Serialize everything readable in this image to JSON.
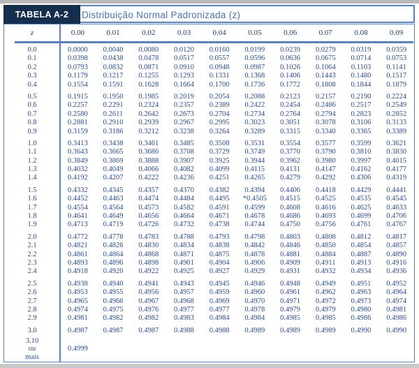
{
  "header": {
    "tab_label": "TABELA A-2",
    "title": "Distribuição Normal Padronizada (z)"
  },
  "colors": {
    "accent_blue": "#5c80b8",
    "navy_block": "#152e4e",
    "title_blue": "#4a74ad",
    "data_text_blue": "#2c4c8c",
    "header_text_blue": "#1f3d73",
    "page_edge_gray": "#b9b9b9"
  },
  "table": {
    "z_header": "z",
    "columns": [
      "0.00",
      "0.01",
      "0.02",
      "0.03",
      "0.04",
      "0.05",
      "0.06",
      "0.07",
      "0.08",
      "0.09"
    ],
    "groups": [
      {
        "rows": [
          {
            "z": "0.0",
            "values": [
              "0.0000",
              "0.0040",
              "0.0080",
              "0.0120",
              "0.0160",
              "0.0199",
              "0.0239",
              "0.0279",
              "0.0319",
              "0.0359"
            ]
          },
          {
            "z": "0.1",
            "values": [
              "0.0398",
              "0.0438",
              "0.0478",
              "0.0517",
              "0.0557",
              "0.0596",
              "0.0636",
              "0.0675",
              "0.0714",
              "0.0753"
            ]
          },
          {
            "z": "0.2",
            "values": [
              "0.0793",
              "0.0832",
              "0.0871",
              "0.0910",
              "0.0948",
              "0.0987",
              "0.1026",
              "0.1064",
              "0.1103",
              "0.1141"
            ]
          },
          {
            "z": "0.3",
            "values": [
              "0.1179",
              "0.1217",
              "0.1255",
              "0.1293",
              "0.1331",
              "0.1368",
              "0.1406",
              "0.1443",
              "0.1480",
              "0.1517"
            ]
          },
          {
            "z": "0.4",
            "values": [
              "0.1554",
              "0.1591",
              "0.1628",
              "0.1664",
              "0.1700",
              "0.1736",
              "0.1772",
              "0.1808",
              "0.1844",
              "0.1879"
            ]
          }
        ]
      },
      {
        "rows": [
          {
            "z": "0.5",
            "values": [
              "0.1915",
              "0.1950",
              "0.1985",
              "0.2019",
              "0.2054",
              "0.2088",
              "0.2123",
              "0.2157",
              "0.2190",
              "0.2224"
            ]
          },
          {
            "z": "0.6",
            "values": [
              "0.2257",
              "0.2291",
              "0.2324",
              "0.2357",
              "0.2389",
              "0.2422",
              "0.2454",
              "0.2486",
              "0.2517",
              "0.2549"
            ]
          },
          {
            "z": "0.7",
            "values": [
              "0.2580",
              "0.2611",
              "0.2642",
              "0.2673",
              "0.2704",
              "0.2734",
              "0.2764",
              "0.2794",
              "0.2823",
              "0.2852"
            ]
          },
          {
            "z": "0.8",
            "values": [
              "0.2881",
              "0.2910",
              "0.2939",
              "0.2967",
              "0.2995",
              "0.3023",
              "0.3051",
              "0.3078",
              "0.3106",
              "0.3133"
            ]
          },
          {
            "z": "0.9",
            "values": [
              "0.3159",
              "0.3186",
              "0.3212",
              "0.3238",
              "0.3264",
              "0.3289",
              "0.3315",
              "0.3340",
              "0.3365",
              "0.3389"
            ]
          }
        ]
      },
      {
        "rows": [
          {
            "z": "1.0",
            "values": [
              "0.3413",
              "0.3438",
              "0.3461",
              "0.3485",
              "0.3508",
              "0.3531",
              "0.3554",
              "0.3577",
              "0.3599",
              "0.3621"
            ]
          },
          {
            "z": "1.1",
            "values": [
              "0.3643",
              "0.3665",
              "0.3686",
              "0.3708",
              "0.3729",
              "0.3749",
              "0.3770",
              "0.3790",
              "0.3810",
              "0.3830"
            ]
          },
          {
            "z": "1.2",
            "values": [
              "0.3849",
              "0.3869",
              "0.3888",
              "0.3907",
              "0.3925",
              "0.3944",
              "0.3962",
              "0.3980",
              "0.3997",
              "0.4015"
            ]
          },
          {
            "z": "1.3",
            "values": [
              "0.4032",
              "0.4049",
              "0.4066",
              "0.4082",
              "0.4099",
              "0.4115",
              "0.4131",
              "0.4147",
              "0.4162",
              "0.4177"
            ]
          },
          {
            "z": "1.4",
            "values": [
              "0.4192",
              "0.4207",
              "0.4222",
              "0.4236",
              "0.4251",
              "0.4265",
              "0.4279",
              "0.4292",
              "0.4306",
              "0.4319"
            ]
          }
        ]
      },
      {
        "rows": [
          {
            "z": "1.5",
            "values": [
              "0.4332",
              "0.4345",
              "0.4357",
              "0.4370",
              "0.4382",
              "0.4394",
              "0.4406",
              "0.4418",
              "0.4429",
              "0.4441"
            ]
          },
          {
            "z": "1.6",
            "values": [
              "0.4452",
              "0.4463",
              "0.4474",
              "0.4484",
              "0.4495",
              "*0.4505",
              "0.4515",
              "0.4525",
              "0.4535",
              "0.4545"
            ]
          },
          {
            "z": "1.7",
            "values": [
              "0.4554",
              "0.4564",
              "0.4573",
              "0.4582",
              "0.4591",
              "0.4599",
              "0.4608",
              "0.4616",
              "0.4625",
              "0.4633"
            ]
          },
          {
            "z": "1.8",
            "values": [
              "0.4641",
              "0.4649",
              "0.4656",
              "0.4664",
              "0.4671",
              "0.4678",
              "0.4686",
              "0.4693",
              "0.4699",
              "0.4706"
            ]
          },
          {
            "z": "1.9",
            "values": [
              "0.4713",
              "0.4719",
              "0.4726",
              "0.4732",
              "0.4738",
              "0.4744",
              "0.4750",
              "0.4756",
              "0.4761",
              "0.4767"
            ]
          }
        ]
      },
      {
        "rows": [
          {
            "z": "2.0",
            "values": [
              "0.4772",
              "0.4778",
              "0.4783",
              "0.4788",
              "0.4793",
              "0.4798",
              "0.4803",
              "0.4808",
              "0.4812",
              "0.4817"
            ]
          },
          {
            "z": "2.1",
            "values": [
              "0.4821",
              "0.4826",
              "0.4830",
              "0.4834",
              "0.4838",
              "0.4842",
              "0.4846",
              "0.4850",
              "0.4854",
              "0.4857"
            ]
          },
          {
            "z": "2.2",
            "values": [
              "0.4861",
              "0.4864",
              "0.4868",
              "0.4871",
              "0.4875",
              "0.4878",
              "0.4881",
              "0.4884",
              "0.4887",
              "0.4890"
            ]
          },
          {
            "z": "2.3",
            "values": [
              "0.4893",
              "0.4896",
              "0.4898",
              "0.4901",
              "0.4904",
              "0.4906",
              "0.4909",
              "0.4911",
              "0.4913",
              "0.4916"
            ]
          },
          {
            "z": "2.4",
            "values": [
              "0.4918",
              "0.4920",
              "0.4922",
              "0.4925",
              "0.4927",
              "0.4929",
              "0.4931",
              "0.4932",
              "0.4934",
              "0.4936"
            ]
          }
        ]
      },
      {
        "rows": [
          {
            "z": "2.5",
            "values": [
              "0.4938",
              "0.4940",
              "0.4941",
              "0.4943",
              "0.4945",
              "0.4946",
              "0.4948",
              "0.4949",
              "0.4951",
              "0.4952"
            ]
          },
          {
            "z": "2.6",
            "values": [
              "0.4953",
              "0.4955",
              "0.4956",
              "0.4957",
              "0.4959",
              "0.4960",
              "0.4961",
              "0.4962",
              "0.4963",
              "0.4964"
            ]
          },
          {
            "z": "2.7",
            "values": [
              "0.4965",
              "0.4966",
              "0.4967",
              "0.4968",
              "0.4969",
              "0.4970",
              "0.4971",
              "0.4972",
              "0.4973",
              "0.4974"
            ]
          },
          {
            "z": "2.8",
            "values": [
              "0.4974",
              "0.4975",
              "0.4976",
              "0.4977",
              "0.4977",
              "0.4978",
              "0.4979",
              "0.4979",
              "0.4980",
              "0.4981"
            ]
          },
          {
            "z": "2.9",
            "values": [
              "0.4981",
              "0.4982",
              "0.4982",
              "0.4983",
              "0.4984",
              "0.4984",
              "0.4985",
              "0.4985",
              "0.4986",
              "0.4986"
            ]
          }
        ]
      },
      {
        "rows": [
          {
            "z": "3.0",
            "values": [
              "0.4987",
              "0.4987",
              "0.4987",
              "0.4988",
              "0.4988",
              "0.4989",
              "0.4989",
              "0.4989",
              "0.4990",
              "0.4990"
            ]
          }
        ]
      }
    ],
    "footer_row": {
      "z_lines": [
        "3.10",
        "ou",
        "mais"
      ],
      "value": "0.4999"
    }
  }
}
